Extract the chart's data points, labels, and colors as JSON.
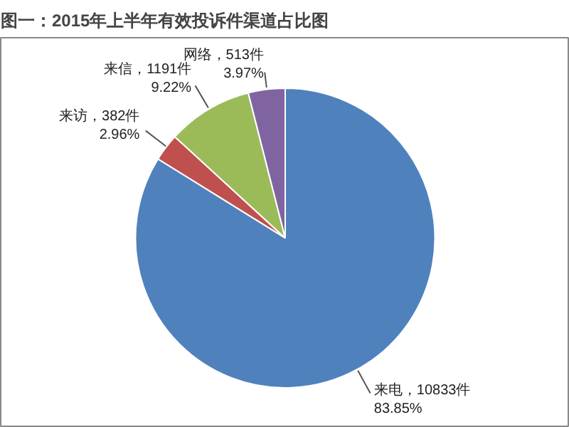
{
  "chart_data": {
    "type": "pie",
    "title": "图一：2015年上半年有效投诉件渠道占比图",
    "categories": [
      "来电",
      "来访",
      "来信",
      "网络"
    ],
    "values": [
      10833,
      382,
      1191,
      513
    ],
    "colors": [
      "#4f81bd",
      "#c0504d",
      "#9bbb59",
      "#8064a2"
    ],
    "value_labels": [
      "10833件\n83.85%",
      "382件\n2.96%",
      "1191件\n9.22%",
      "513件\n3.97%"
    ]
  }
}
